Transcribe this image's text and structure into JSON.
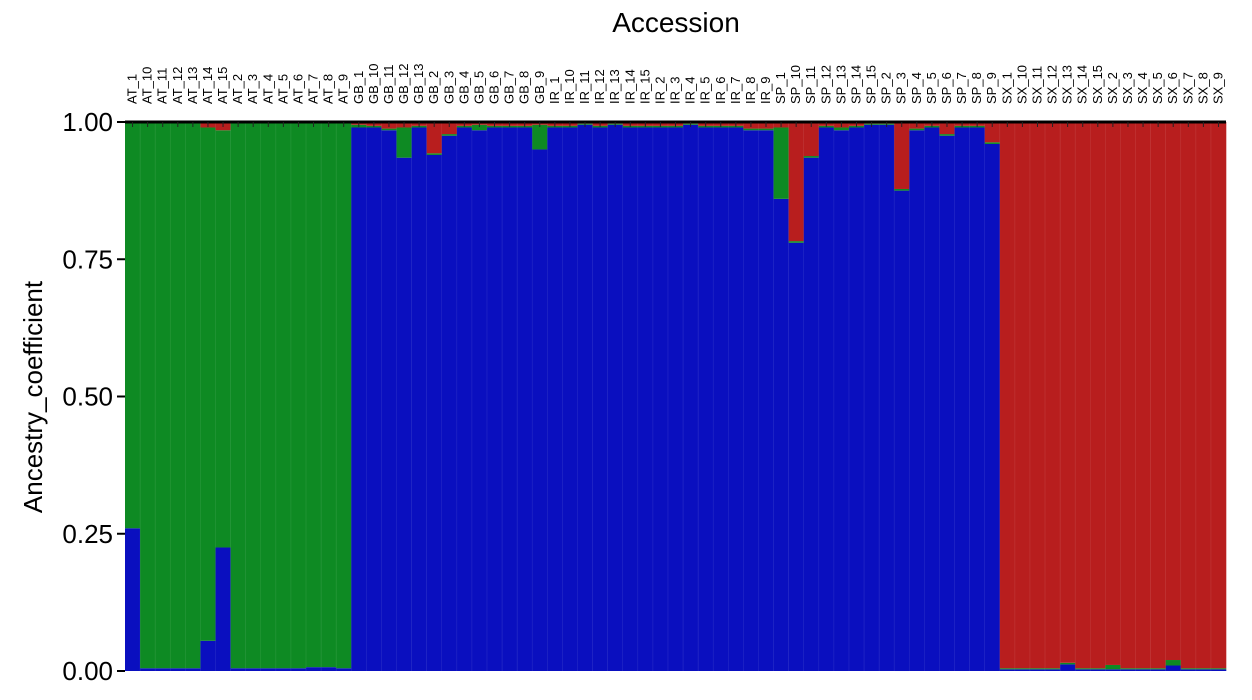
{
  "colors": {
    "blue": "#0a0fbf",
    "green": "#0e8a23",
    "red": "#b81e1e"
  },
  "chart_data": {
    "type": "bar",
    "stacked": true,
    "title": "Accession",
    "ylabel": "Ancestry_coefficient",
    "xlabel": "",
    "ylim": [
      0,
      1
    ],
    "yticks": [
      "0.00",
      "0.25",
      "0.50",
      "0.75",
      "1.00"
    ],
    "categories": [
      "AT_1",
      "AT_10",
      "AT_11",
      "AT_12",
      "AT_13",
      "AT_14",
      "AT_15",
      "AT_2",
      "AT_3",
      "AT_4",
      "AT_5",
      "AT_6",
      "AT_7",
      "AT_8",
      "AT_9",
      "GB_1",
      "GB_10",
      "GB_11",
      "GB_12",
      "GB_13",
      "GB_2",
      "GB_3",
      "GB_4",
      "GB_5",
      "GB_6",
      "GB_7",
      "GB_8",
      "GB_9",
      "IR_1",
      "IR_10",
      "IR_11",
      "IR_12",
      "IR_13",
      "IR_14",
      "IR_15",
      "IR_2",
      "IR_3",
      "IR_4",
      "IR_5",
      "IR_6",
      "IR_7",
      "IR_8",
      "IR_9",
      "SP_1",
      "SP_10",
      "SP_11",
      "SP_12",
      "SP_13",
      "SP_14",
      "SP_15",
      "SP_2",
      "SP_3",
      "SP_4",
      "SP_5",
      "SP_6",
      "SP_7",
      "SP_8",
      "SP_9",
      "SX_1",
      "SX_10",
      "SX_11",
      "SX_12",
      "SX_13",
      "SX_14",
      "SX_15",
      "SX_2",
      "SX_3",
      "SX_4",
      "SX_5",
      "SX_6",
      "SX_7",
      "SX_8",
      "SX_9"
    ],
    "series": [
      {
        "color": "blue",
        "values": [
          0.26,
          0.005,
          0.005,
          0.005,
          0.005,
          0.055,
          0.225,
          0.005,
          0.005,
          0.005,
          0.005,
          0.005,
          0.007,
          0.007,
          0.005,
          0.99,
          0.99,
          0.985,
          0.935,
          0.99,
          0.94,
          0.975,
          0.99,
          0.985,
          0.99,
          0.99,
          0.99,
          0.95,
          0.99,
          0.99,
          0.995,
          0.99,
          0.995,
          0.99,
          0.99,
          0.99,
          0.99,
          0.995,
          0.99,
          0.99,
          0.99,
          0.985,
          0.985,
          0.86,
          0.78,
          0.935,
          0.99,
          0.985,
          0.99,
          0.995,
          0.995,
          0.875,
          0.985,
          0.99,
          0.975,
          0.99,
          0.99,
          0.96,
          0.003,
          0.003,
          0.003,
          0.003,
          0.012,
          0.003,
          0.003,
          0.003,
          0.003,
          0.003,
          0.003,
          0.01,
          0.003,
          0.003,
          0.003
        ]
      },
      {
        "color": "green",
        "values": [
          0.74,
          0.995,
          0.995,
          0.995,
          0.995,
          0.935,
          0.76,
          0.995,
          0.995,
          0.995,
          0.995,
          0.995,
          0.993,
          0.993,
          0.995,
          0.005,
          0.003,
          0.003,
          0.055,
          0.003,
          0.003,
          0.003,
          0.003,
          0.01,
          0.003,
          0.003,
          0.003,
          0.045,
          0.003,
          0.003,
          0.002,
          0.003,
          0.002,
          0.003,
          0.003,
          0.003,
          0.003,
          0.002,
          0.003,
          0.003,
          0.003,
          0.003,
          0.003,
          0.13,
          0.003,
          0.003,
          0.003,
          0.005,
          0.003,
          0.002,
          0.002,
          0.003,
          0.003,
          0.003,
          0.003,
          0.003,
          0.003,
          0.003,
          0.002,
          0.002,
          0.002,
          0.002,
          0.003,
          0.002,
          0.002,
          0.008,
          0.002,
          0.002,
          0.002,
          0.01,
          0.002,
          0.002,
          0.002
        ]
      },
      {
        "color": "red",
        "values": [
          0.0,
          0.0,
          0.0,
          0.0,
          0.0,
          0.01,
          0.015,
          0.0,
          0.0,
          0.0,
          0.0,
          0.0,
          0.0,
          0.0,
          0.0,
          0.005,
          0.007,
          0.012,
          0.01,
          0.007,
          0.057,
          0.022,
          0.007,
          0.005,
          0.007,
          0.007,
          0.007,
          0.005,
          0.007,
          0.007,
          0.003,
          0.007,
          0.003,
          0.007,
          0.007,
          0.007,
          0.007,
          0.003,
          0.007,
          0.007,
          0.007,
          0.012,
          0.012,
          0.01,
          0.217,
          0.062,
          0.007,
          0.01,
          0.007,
          0.003,
          0.003,
          0.122,
          0.012,
          0.007,
          0.022,
          0.007,
          0.007,
          0.037,
          0.995,
          0.995,
          0.995,
          0.995,
          0.985,
          0.995,
          0.995,
          0.989,
          0.995,
          0.995,
          0.995,
          0.98,
          0.995,
          0.995,
          0.995
        ]
      }
    ]
  }
}
